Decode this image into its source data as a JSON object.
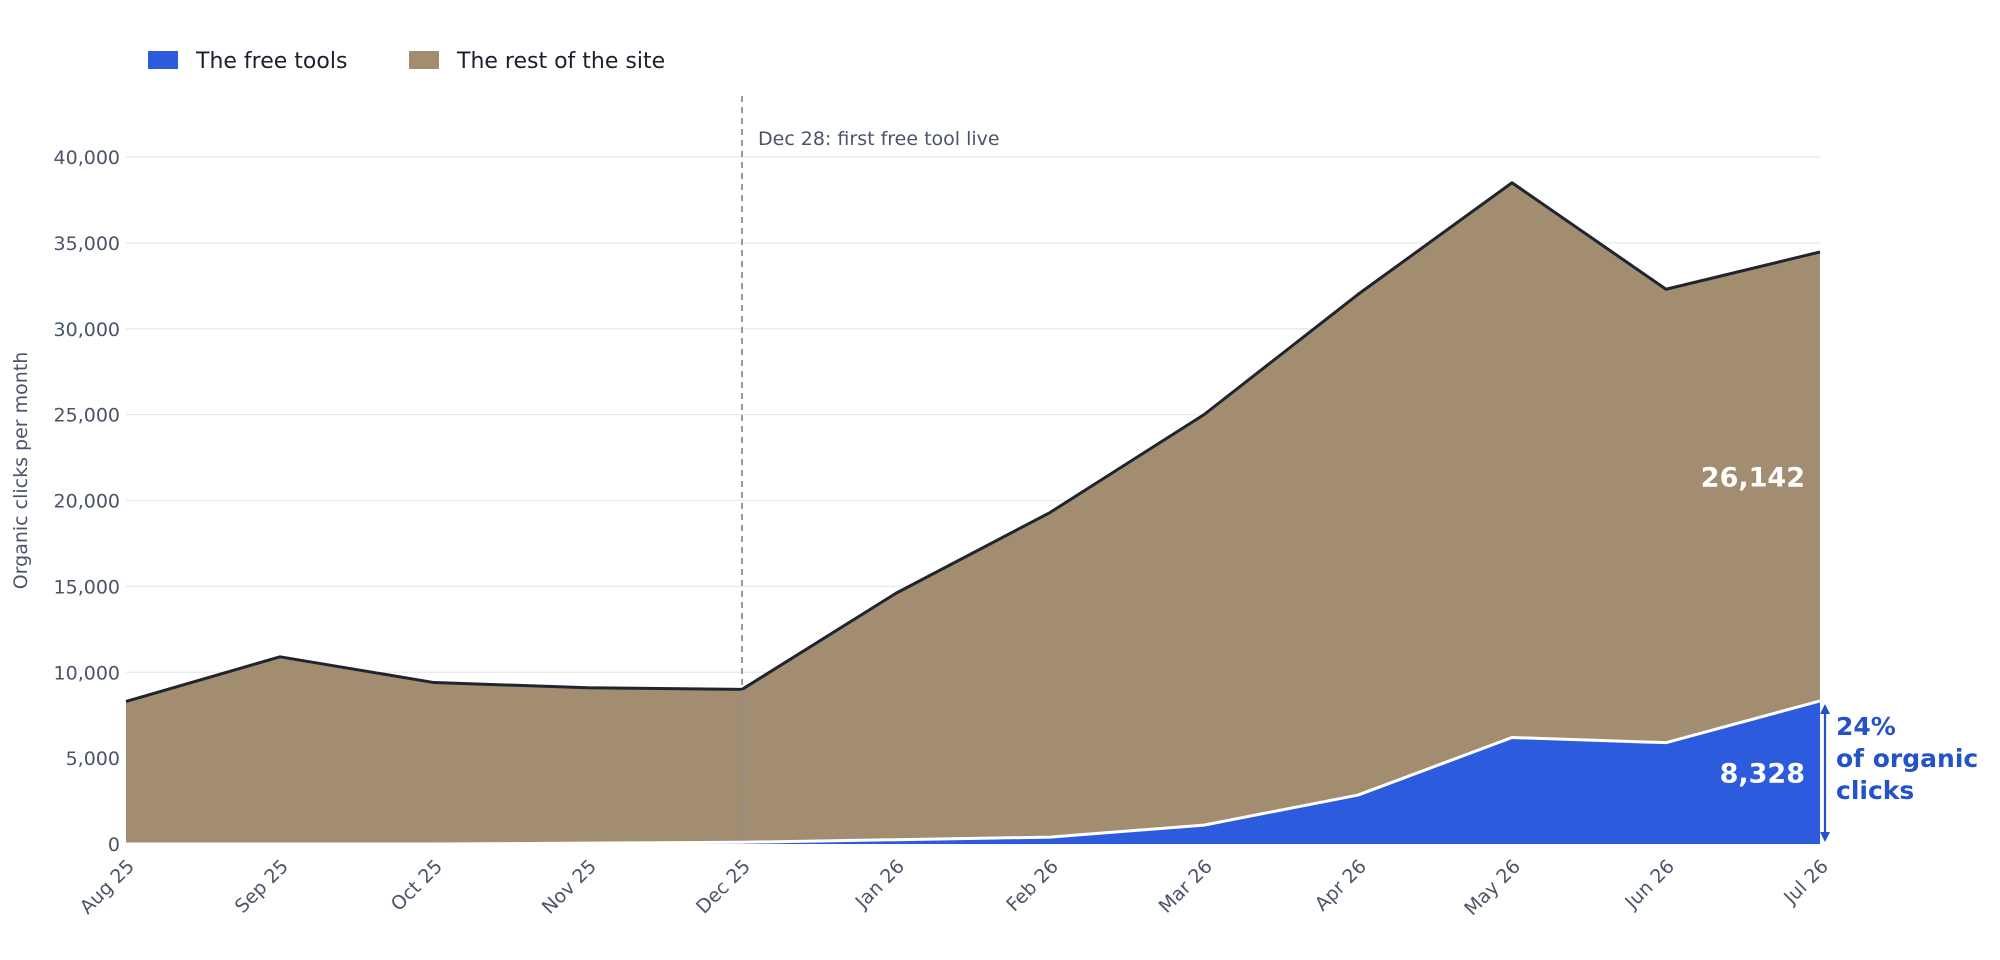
{
  "chart_data": {
    "type": "area",
    "stacked": true,
    "categories": [
      "Aug 25",
      "Sep 25",
      "Oct 25",
      "Nov 25",
      "Dec 25",
      "Jan 26",
      "Feb 26",
      "Mar 26",
      "Apr 26",
      "May 26",
      "Jun 26",
      "Jul 26"
    ],
    "series": [
      {
        "name": "The free tools",
        "color": "#2d5bdd",
        "values": [
          0,
          0,
          0,
          50,
          100,
          250,
          400,
          1100,
          2850,
          6200,
          5900,
          8328
        ]
      },
      {
        "name": "The rest of the site",
        "color": "#a38d71",
        "values": [
          8300,
          10900,
          9400,
          9050,
          8900,
          14350,
          18900,
          23900,
          29150,
          32300,
          26400,
          26142
        ]
      }
    ],
    "legend": {
      "position": "top-left"
    },
    "ylabel": "Organic clicks per month",
    "xlabel": "",
    "ylim": [
      0,
      40000
    ],
    "yticks": [
      0,
      5000,
      10000,
      15000,
      20000,
      25000,
      30000,
      35000,
      40000
    ],
    "ytick_labels": [
      "0",
      "5,000",
      "10,000",
      "15,000",
      "20,000",
      "25,000",
      "30,000",
      "35,000",
      "40,000"
    ],
    "grid": {
      "y": true,
      "x": false
    },
    "annotations": {
      "event_line": {
        "x": "Dec 25",
        "label": "Dec 28: first free tool live"
      },
      "rest_end_label": "26,142",
      "tools_end_label": "8,328",
      "share_lines": [
        "24%",
        "of organic",
        "clicks"
      ]
    },
    "colors": {
      "total_line": "#1f2530",
      "divider_line": "#ffffff",
      "grid": "#e6e8eb",
      "event_line": "#8a8f99",
      "share_accent": "#2452c7"
    }
  }
}
